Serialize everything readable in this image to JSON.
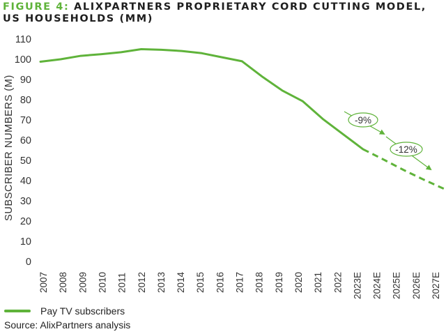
{
  "chart_data": {
    "type": "line",
    "title_prefix": "FIGURE 4:",
    "title_line1": "ALIXPARTNERS PROPRIETARY CORD CUTTING MODEL,",
    "title_line2": "US HOUSEHOLDS (MM)",
    "ylabel": "SUBSCRIBER NUMBERS (M)",
    "xlabel": "",
    "ylim": [
      0,
      110
    ],
    "yticks": [
      "0",
      "10",
      "20",
      "30",
      "40",
      "50",
      "60",
      "70",
      "80",
      "90",
      "100",
      "110"
    ],
    "categories": [
      "2007",
      "2008",
      "2009",
      "2010",
      "2011",
      "2012",
      "2013",
      "2014",
      "2015",
      "2016",
      "2017",
      "2018",
      "2019",
      "2020",
      "2021",
      "2022",
      "2023E",
      "2024E",
      "2025E",
      "2026E",
      "2027E"
    ],
    "series": [
      {
        "name": "Pay TV subscribers",
        "color": "#5fb33a",
        "values": [
          98.8,
          100,
          101.7,
          102.5,
          103.5,
          105,
          104.7,
          104.1,
          103,
          101,
          99,
          91.4,
          84.5,
          79.3,
          70.5,
          63,
          55.5,
          50.5,
          45.3,
          40.5,
          36
        ],
        "solid_until": "2023E",
        "dashed_from": "2023E"
      }
    ],
    "annotations": [
      {
        "text": "-9%"
      },
      {
        "text": "-12%"
      }
    ],
    "legend": {
      "position": "bottom-left",
      "entries": [
        "Pay TV subscribers"
      ]
    },
    "grid": false,
    "source": "Source: AlixPartners analysis"
  }
}
